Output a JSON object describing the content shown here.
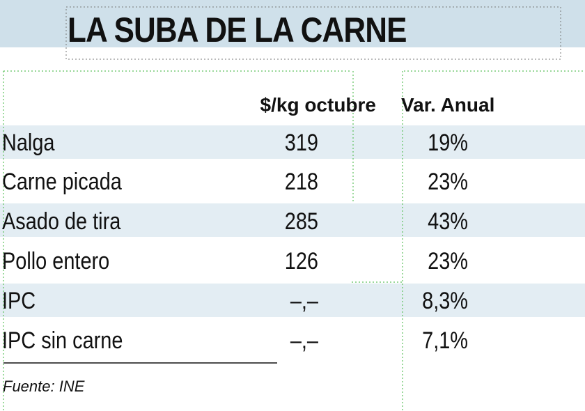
{
  "header": {
    "title": "LA SUBA DE LA CARNE"
  },
  "table": {
    "columns": [
      "",
      "$/kg octubre",
      "Var. Anual"
    ],
    "rows": [
      [
        "Nalga",
        "319",
        "19%"
      ],
      [
        "Carne picada",
        "218",
        "23%"
      ],
      [
        "Asado de tira",
        "285",
        "43%"
      ],
      [
        "Pollo entero",
        "126",
        "23%"
      ],
      [
        "IPC",
        "–,–",
        "8,3%"
      ],
      [
        "IPC sin carne",
        "–,–",
        "7,1%"
      ]
    ]
  },
  "footer": {
    "source": "Fuente: INE"
  }
}
